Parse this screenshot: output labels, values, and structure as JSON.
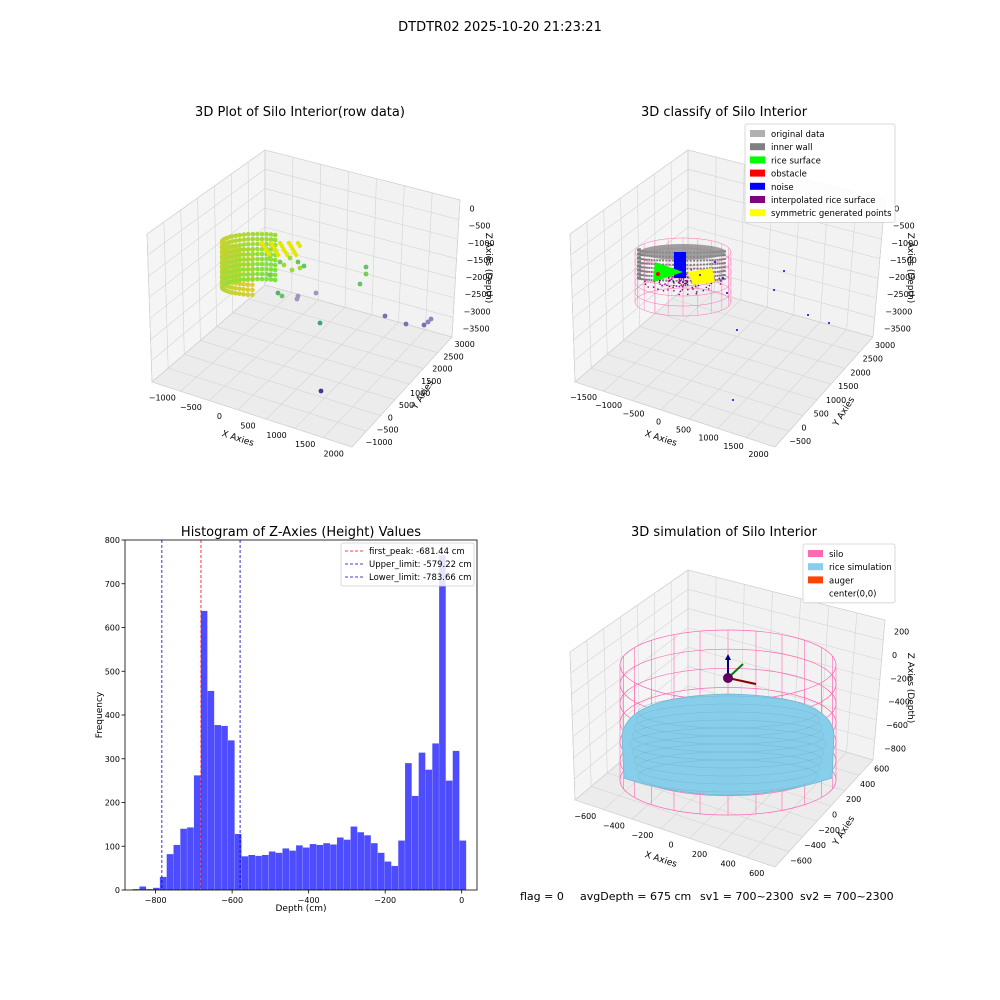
{
  "suptitle": "DTDTR02 2025-10-20 21:23:21",
  "colors": {
    "hist": "#4d4dff",
    "first_peak": "#ff0000",
    "limits": "#0000cc",
    "silo": "#ff69b4",
    "rice": "#87ceeb",
    "auger": "#ff4500",
    "inner_wall": "#808080",
    "rice_surface": "#00ff00",
    "noise": "#0000ff",
    "interpolated": "#800080",
    "symmetric": "#ffff00",
    "original": "#b0b0b0",
    "obstacle": "#ff0000"
  },
  "panels": {
    "raw": {
      "title": "3D Plot of Silo Interior(row data)",
      "xlabel": "X Axies",
      "ylabel": "Y Axies",
      "zlabel": "Z Axies (Depth)",
      "xticks": [
        "−1000",
        "−500",
        "0",
        "500",
        "1000",
        "1500",
        "2000"
      ],
      "yticks": [
        "−1000",
        "−500",
        "0",
        "500",
        "1000",
        "1500",
        "2000",
        "2500",
        "3000"
      ],
      "zticks": [
        "0",
        "−500",
        "−1000",
        "−1500",
        "−2000",
        "−2500",
        "−3000",
        "−3500"
      ]
    },
    "classify": {
      "title": "3D classify of Silo Interior",
      "xlabel": "X Axies",
      "ylabel": "Y Axies",
      "zlabel": "Z Axies (Depth)",
      "xticks": [
        "−1500",
        "−1000",
        "−500",
        "0",
        "500",
        "1000",
        "1500",
        "2000"
      ],
      "yticks": [
        "−500",
        "0",
        "500",
        "1000",
        "1500",
        "2000",
        "2500",
        "3000"
      ],
      "zticks": [
        "0",
        "−500",
        "−1000",
        "−1500",
        "−2000",
        "−2500",
        "−3000",
        "−3500"
      ],
      "legend": [
        {
          "label": "original data",
          "color": "#b0b0b0"
        },
        {
          "label": "inner wall",
          "color": "#808080"
        },
        {
          "label": "rice surface",
          "color": "#00ff00"
        },
        {
          "label": "obstacle",
          "color": "#ff0000"
        },
        {
          "label": "noise",
          "color": "#0000ff"
        },
        {
          "label": "interpolated rice surface",
          "color": "#800080"
        },
        {
          "label": "symmetric generated points",
          "color": "#ffff00"
        }
      ]
    },
    "simulation": {
      "title": "3D simulation of Silo Interior",
      "xlabel": "X Axies",
      "ylabel": "Y Axies",
      "zlabel": "Z Axies (Depth)",
      "xticks": [
        "−600",
        "−400",
        "−200",
        "0",
        "200",
        "400",
        "600"
      ],
      "yticks": [
        "−600",
        "−400",
        "−200",
        "0",
        "200",
        "400",
        "600"
      ],
      "zticks": [
        "200",
        "0",
        "−200",
        "−400",
        "−600",
        "−800"
      ],
      "legend": [
        {
          "label": "silo",
          "color": "#ff69b4"
        },
        {
          "label": "rice simulation",
          "color": "#87ceeb"
        },
        {
          "label": "auger",
          "color": "#ff4500"
        },
        {
          "label": "center(0,0)",
          "color": ""
        }
      ]
    }
  },
  "status_line": {
    "flag": "flag = 0",
    "avg_depth": "avgDepth = 675 cm",
    "sv1": "sv1 = 700~2300",
    "sv2": "sv2 = 700~2300"
  },
  "chart_data": {
    "type": "bar",
    "title": "Histogram of Z-Axies (Height) Values",
    "xlabel": "Depth (cm)",
    "ylabel": "Frequency",
    "xlim": [
      -880,
      40
    ],
    "ylim": [
      0,
      800
    ],
    "xticks": [
      -800,
      -600,
      -400,
      -200,
      0
    ],
    "yticks": [
      0,
      100,
      200,
      300,
      400,
      500,
      600,
      700,
      800
    ],
    "bin_start": -860,
    "bin_width": 17.8,
    "values": [
      2,
      8,
      2,
      5,
      30,
      82,
      103,
      140,
      143,
      262,
      638,
      455,
      377,
      375,
      342,
      128,
      77,
      80,
      78,
      80,
      88,
      85,
      95,
      90,
      102,
      97,
      105,
      103,
      107,
      104,
      120,
      115,
      145,
      132,
      125,
      107,
      85,
      65,
      55,
      113,
      290,
      215,
      314,
      275,
      335,
      765,
      250,
      318,
      113
    ],
    "vlines": [
      {
        "label": "first_peak: -681.44 cm",
        "x": -681.44,
        "color": "#ff0000"
      },
      {
        "label": "Upper_limit: -579.22 cm",
        "x": -579.22,
        "color": "#0000cc"
      },
      {
        "label": "Lower_limit: -783.66 cm",
        "x": -783.66,
        "color": "#0000cc"
      }
    ]
  }
}
